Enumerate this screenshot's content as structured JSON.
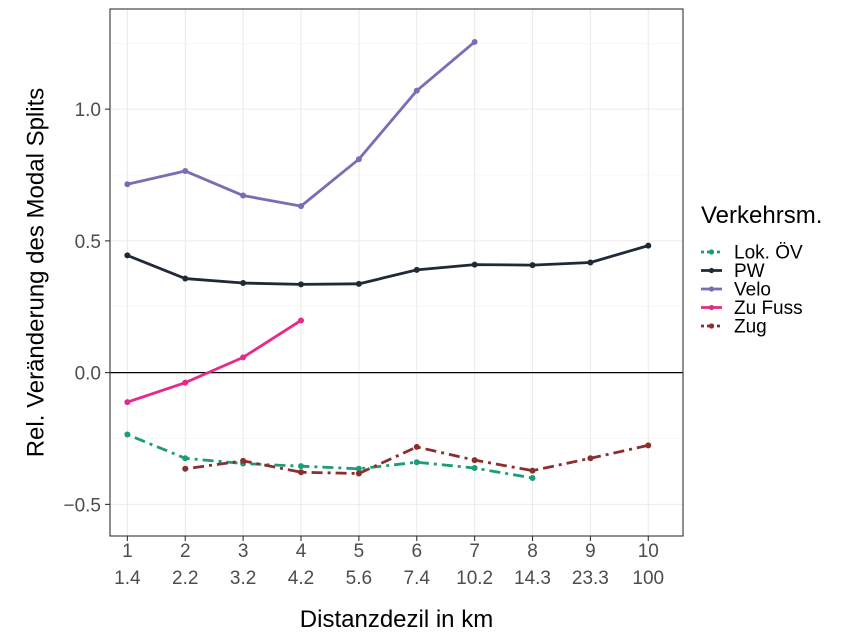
{
  "chart_data": {
    "type": "line",
    "xlabel": "Distanzdezil in km",
    "ylabel": "Rel. Veränderung des Modal Splits",
    "x": [
      1,
      2,
      3,
      4,
      5,
      6,
      7,
      8,
      9,
      10
    ],
    "x_tick_labels_top": [
      "1",
      "2",
      "3",
      "4",
      "5",
      "6",
      "7",
      "8",
      "9",
      "10"
    ],
    "x_tick_labels_bottom": [
      "1.4",
      "2.2",
      "3.2",
      "4.2",
      "5.6",
      "7.4",
      "10.2",
      "14.3",
      "23.3",
      "100"
    ],
    "xlim": [
      0.7,
      10.6
    ],
    "ylim": [
      -0.62,
      1.38
    ],
    "y_ticks": [
      -0.5,
      0.0,
      0.5,
      1.0
    ],
    "y_tick_labels": [
      "−0.5",
      "0.0",
      "0.5",
      "1.0"
    ],
    "reference_line_y": 0,
    "grid": true,
    "legend": {
      "title": "Verkehrsm.",
      "position": "right"
    },
    "series": [
      {
        "name": "Lok. ÖV",
        "color": "#1b9e77",
        "dash": "dotdash",
        "x": [
          1,
          2,
          3,
          4,
          5,
          6,
          7,
          8
        ],
        "values": [
          -0.235,
          -0.325,
          -0.345,
          -0.355,
          -0.365,
          -0.34,
          -0.362,
          -0.4
        ]
      },
      {
        "name": "PW",
        "color": "#1f2937",
        "dash": "solid",
        "x": [
          1,
          2,
          3,
          4,
          5,
          6,
          7,
          8,
          9,
          10
        ],
        "values": [
          0.445,
          0.357,
          0.34,
          0.335,
          0.337,
          0.39,
          0.41,
          0.408,
          0.418,
          0.482
        ]
      },
      {
        "name": "Velo",
        "color": "#7570b3",
        "dash": "solid",
        "x": [
          1,
          2,
          3,
          4,
          5,
          6,
          7
        ],
        "values": [
          0.715,
          0.765,
          0.672,
          0.632,
          0.81,
          1.07,
          1.255
        ]
      },
      {
        "name": "Zu Fuss",
        "color": "#e7298a",
        "dash": "solid",
        "x": [
          1,
          2,
          3,
          4
        ],
        "values": [
          -0.112,
          -0.038,
          0.058,
          0.198
        ]
      },
      {
        "name": "Zug",
        "color": "#8b2e2e",
        "dash": "dotdash",
        "x": [
          2,
          3,
          4,
          5,
          6,
          7,
          8,
          9,
          10
        ],
        "values": [
          -0.365,
          -0.335,
          -0.378,
          -0.383,
          -0.282,
          -0.332,
          -0.372,
          -0.325,
          -0.276
        ]
      }
    ]
  }
}
